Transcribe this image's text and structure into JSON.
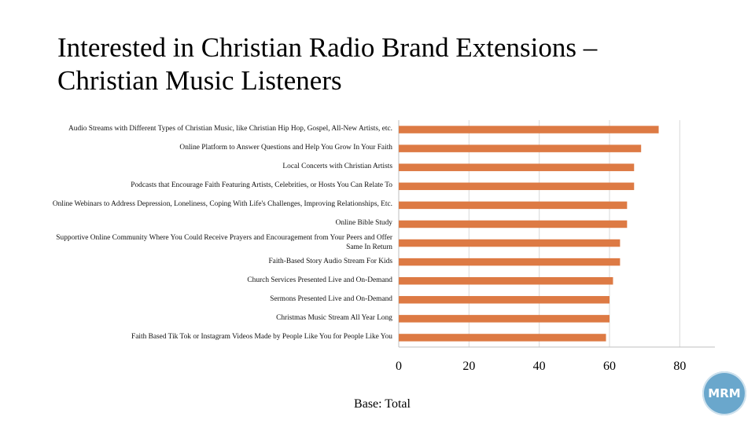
{
  "slide": {
    "title_line1": "Interested in Christian Radio Brand Extensions –",
    "title_line2": "Christian Music Listeners",
    "footer": "Base: Total",
    "logo_text": "MRM"
  },
  "chart_data": {
    "type": "bar",
    "orientation": "horizontal",
    "categories": [
      "Audio Streams with Different Types of Christian Music, like Christian Hip Hop, Gospel, All-New Artists, etc.",
      "Online Platform to Answer Questions and Help You Grow In Your Faith",
      "Local Concerts with Christian Artists",
      "Podcasts that Encourage Faith Featuring Artists, Celebrities, or Hosts You Can Relate To",
      "Online Webinars to Address Depression, Loneliness, Coping With Life's Challenges, Improving Relationships, Etc.",
      "Online Bible Study",
      "Supportive Online Community Where You Could Receive Prayers and Encouragement from Your Peers and Offer Same In Return",
      "Faith-Based Story Audio Stream For Kids",
      "Church Services Presented Live and On-Demand",
      "Sermons Presented Live and On-Demand",
      "Christmas Music Stream All Year Long",
      "Faith Based Tik Tok or Instagram Videos Made by People Like You for People Like You"
    ],
    "values": [
      74,
      69,
      67,
      67,
      65,
      65,
      63,
      63,
      61,
      60,
      60,
      59
    ],
    "xlim": [
      0,
      90
    ],
    "xticks": [
      0,
      20,
      40,
      60,
      80
    ],
    "grid": true,
    "bar_color": "#dd7a44",
    "grid_color": "#d9d9d9",
    "title": "",
    "xlabel": "",
    "ylabel": ""
  }
}
